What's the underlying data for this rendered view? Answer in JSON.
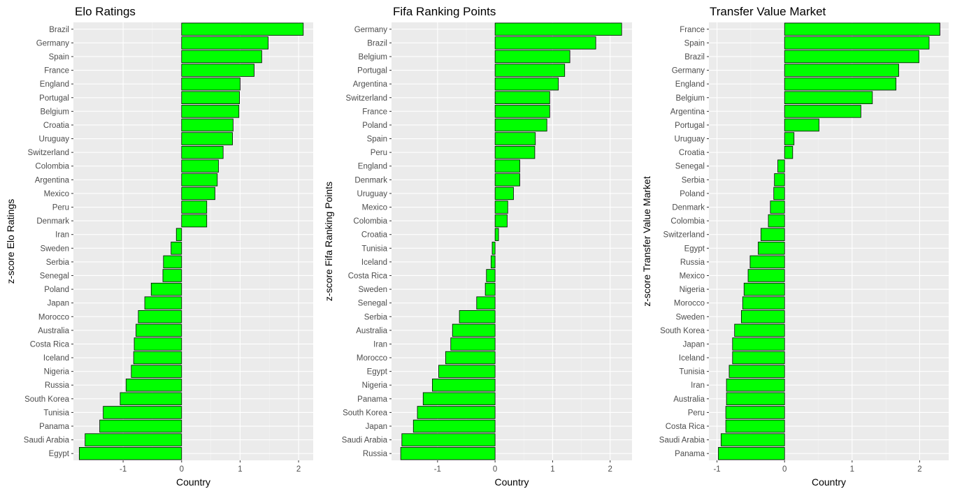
{
  "bar_color": "#00ff00",
  "bar_outline": "#000000",
  "panel_bg": "#ebebeb",
  "grid_major": "#ffffff",
  "chart_data": [
    {
      "type": "bar",
      "orientation": "horizontal",
      "title": "Elo Ratings",
      "xlabel": "Country",
      "ylabel": "z-score Elo Ratings",
      "xlim": [
        -1.85,
        2.25
      ],
      "xticks": [
        -1,
        0,
        1,
        2
      ],
      "categories": [
        "Brazil",
        "Germany",
        "Spain",
        "France",
        "England",
        "Portugal",
        "Belgium",
        "Croatia",
        "Uruguay",
        "Switzerland",
        "Colombia",
        "Argentina",
        "Mexico",
        "Peru",
        "Denmark",
        "Iran",
        "Sweden",
        "Serbia",
        "Senegal",
        "Poland",
        "Japan",
        "Morocco",
        "Australia",
        "Costa Rica",
        "Iceland",
        "Nigeria",
        "Russia",
        "South Korea",
        "Tunisia",
        "Panama",
        "Saudi Arabia",
        "Egypt"
      ],
      "values": [
        2.08,
        1.48,
        1.37,
        1.24,
        1.0,
        0.99,
        0.98,
        0.88,
        0.87,
        0.71,
        0.63,
        0.61,
        0.57,
        0.43,
        0.43,
        -0.09,
        -0.18,
        -0.31,
        -0.32,
        -0.52,
        -0.63,
        -0.74,
        -0.78,
        -0.81,
        -0.82,
        -0.86,
        -0.95,
        -1.05,
        -1.34,
        -1.4,
        -1.65,
        -1.75
      ]
    },
    {
      "type": "bar",
      "orientation": "horizontal",
      "title": "Fifa Ranking Points",
      "xlabel": "Country",
      "ylabel": "z-score Fifa Ranking Points",
      "xlim": [
        -1.8,
        2.38
      ],
      "xticks": [
        -1,
        0,
        1,
        2
      ],
      "categories": [
        "Germany",
        "Brazil",
        "Belgium",
        "Portugal",
        "Argentina",
        "Switzerland",
        "France",
        "Poland",
        "Spain",
        "Peru",
        "England",
        "Denmark",
        "Uruguay",
        "Mexico",
        "Colombia",
        "Croatia",
        "Tunisia",
        "Iceland",
        "Costa Rica",
        "Sweden",
        "Senegal",
        "Serbia",
        "Australia",
        "Iran",
        "Morocco",
        "Egypt",
        "Nigeria",
        "Panama",
        "South Korea",
        "Japan",
        "Saudi Arabia",
        "Russia"
      ],
      "values": [
        2.2,
        1.75,
        1.3,
        1.21,
        1.1,
        0.95,
        0.95,
        0.9,
        0.7,
        0.69,
        0.43,
        0.43,
        0.32,
        0.22,
        0.21,
        0.06,
        -0.05,
        -0.07,
        -0.15,
        -0.17,
        -0.32,
        -0.62,
        -0.74,
        -0.77,
        -0.86,
        -0.98,
        -1.09,
        -1.25,
        -1.35,
        -1.42,
        -1.62,
        -1.64
      ]
    },
    {
      "type": "bar",
      "orientation": "horizontal",
      "title": "Transfer Value Market",
      "xlabel": "Country",
      "ylabel": "z-score Transfer Value Market",
      "xlim": [
        -1.12,
        2.43
      ],
      "xticks": [
        -1,
        0,
        1,
        2
      ],
      "categories": [
        "France",
        "Spain",
        "Brazil",
        "Germany",
        "England",
        "Belgium",
        "Argentina",
        "Portugal",
        "Uruguay",
        "Croatia",
        "Senegal",
        "Serbia",
        "Poland",
        "Denmark",
        "Colombia",
        "Switzerland",
        "Egypt",
        "Russia",
        "Mexico",
        "Nigeria",
        "Morocco",
        "Sweden",
        "South Korea",
        "Japan",
        "Iceland",
        "Tunisia",
        "Iran",
        "Australia",
        "Peru",
        "Costa Rica",
        "Saudi Arabia",
        "Panama"
      ],
      "values": [
        2.3,
        2.14,
        1.99,
        1.69,
        1.65,
        1.3,
        1.13,
        0.51,
        0.14,
        0.12,
        -0.1,
        -0.15,
        -0.16,
        -0.21,
        -0.24,
        -0.35,
        -0.39,
        -0.51,
        -0.54,
        -0.6,
        -0.62,
        -0.64,
        -0.74,
        -0.77,
        -0.77,
        -0.82,
        -0.86,
        -0.86,
        -0.87,
        -0.87,
        -0.94,
        -0.98
      ]
    }
  ]
}
